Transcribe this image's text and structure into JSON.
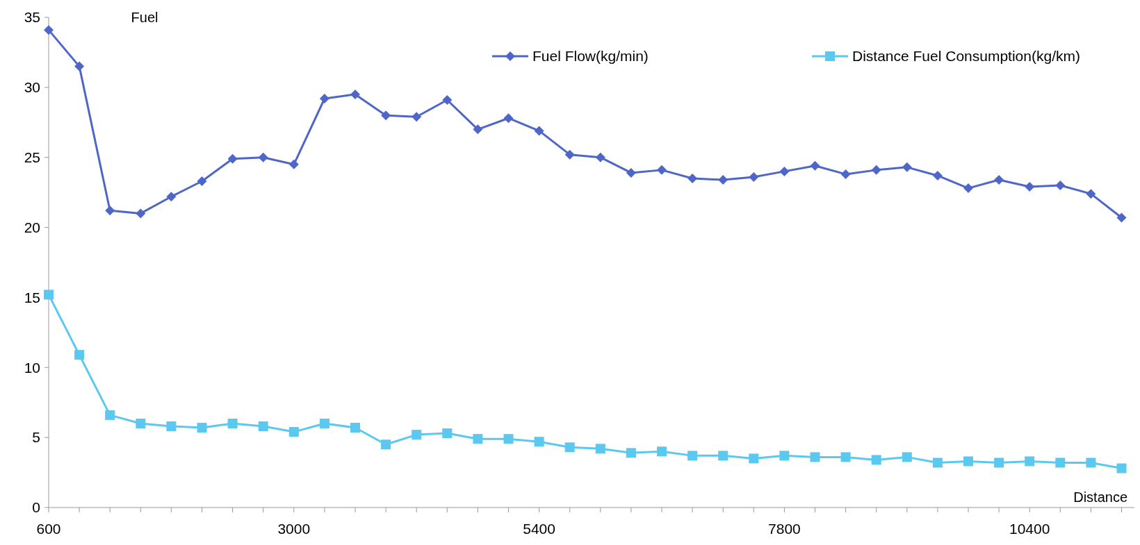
{
  "chart_data": {
    "type": "line",
    "xlabel": "Distance",
    "ylabel": "Fuel",
    "categories": [
      "600",
      null,
      null,
      null,
      null,
      null,
      null,
      null,
      "3000",
      null,
      null,
      null,
      null,
      null,
      null,
      null,
      "5400",
      null,
      null,
      null,
      null,
      null,
      null,
      null,
      "7800",
      null,
      null,
      null,
      null,
      null,
      null,
      null,
      "10400",
      null,
      null,
      null
    ],
    "series": [
      {
        "name": "Fuel Flow(kg/min)",
        "color": "#4f66c9",
        "marker": "diamond",
        "values": [
          34.1,
          31.5,
          21.2,
          21.0,
          22.2,
          23.3,
          24.9,
          25.0,
          24.5,
          29.2,
          29.5,
          28.0,
          27.9,
          29.1,
          27.0,
          27.8,
          26.9,
          25.2,
          25.0,
          23.9,
          24.1,
          23.5,
          23.4,
          23.6,
          24.0,
          24.4,
          23.8,
          24.1,
          24.3,
          23.7,
          22.8,
          23.4,
          22.9,
          23.0,
          22.4,
          20.7
        ]
      },
      {
        "name": "Distance Fuel Consumption(kg/km)",
        "color": "#5bc8ef",
        "marker": "square",
        "values": [
          15.2,
          10.9,
          6.6,
          6.0,
          5.8,
          5.7,
          6.0,
          5.8,
          5.4,
          6.0,
          5.7,
          4.5,
          5.2,
          5.3,
          4.9,
          4.9,
          4.7,
          4.3,
          4.2,
          3.9,
          4.0,
          3.7,
          3.7,
          3.5,
          3.7,
          3.6,
          3.6,
          3.4,
          3.6,
          3.2,
          3.3,
          3.2,
          3.3,
          3.2,
          3.2,
          2.8
        ]
      }
    ],
    "ylim": [
      0,
      35
    ],
    "yticks": [
      0,
      5,
      10,
      15,
      20,
      25,
      30,
      35
    ],
    "grid": false,
    "legend": "top right",
    "line_style": "solid"
  }
}
